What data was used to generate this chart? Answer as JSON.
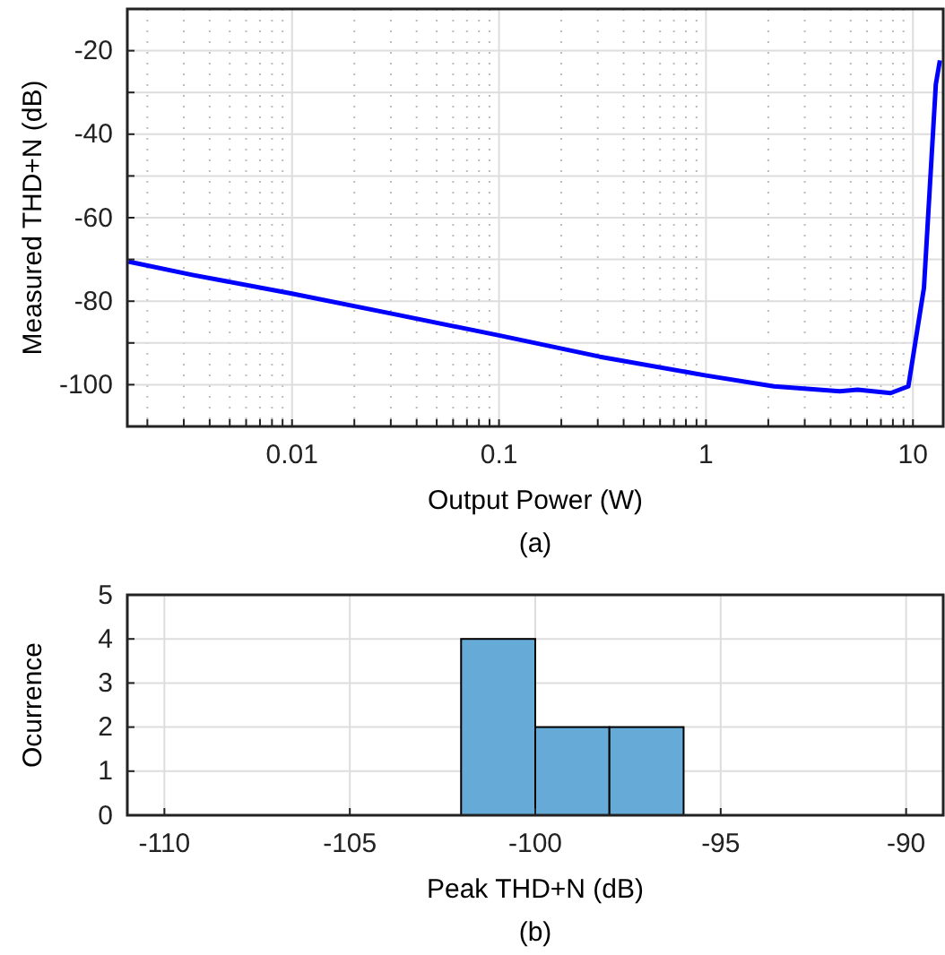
{
  "chart_data": [
    {
      "type": "line",
      "xlabel": "Output Power (W)",
      "ylabel": "Measured THD+N (dB)",
      "annotations": [
        "(a)"
      ],
      "log": "x",
      "grid": true,
      "xlim": [
        0.0016,
        14
      ],
      "ylim": [
        -110,
        -10
      ],
      "xticks": [
        {
          "value": 0.002,
          "label": null
        },
        {
          "value": 0.003,
          "label": null
        },
        {
          "value": 0.004,
          "label": null
        },
        {
          "value": 0.005,
          "label": null
        },
        {
          "value": 0.006,
          "label": null
        },
        {
          "value": 0.007,
          "label": null
        },
        {
          "value": 0.008,
          "label": null
        },
        {
          "value": 0.009,
          "label": null
        },
        0.01,
        {
          "value": 0.02,
          "label": null
        },
        {
          "value": 0.03,
          "label": null
        },
        {
          "value": 0.04,
          "label": null
        },
        {
          "value": 0.05,
          "label": null
        },
        {
          "value": 0.06,
          "label": null
        },
        {
          "value": 0.07,
          "label": null
        },
        {
          "value": 0.08,
          "label": null
        },
        {
          "value": 0.09,
          "label": null
        },
        0.1,
        {
          "value": 0.2,
          "label": null
        },
        {
          "value": 0.3,
          "label": null
        },
        {
          "value": 0.4,
          "label": null
        },
        {
          "value": 0.5,
          "label": null
        },
        {
          "value": 0.6,
          "label": null
        },
        {
          "value": 0.7,
          "label": null
        },
        {
          "value": 0.8,
          "label": null
        },
        {
          "value": 0.9,
          "label": null
        },
        1,
        {
          "value": 2,
          "label": null
        },
        {
          "value": 3,
          "label": null
        },
        {
          "value": 4,
          "label": null
        },
        {
          "value": 5,
          "label": null
        },
        {
          "value": 6,
          "label": null
        },
        {
          "value": 7,
          "label": null
        },
        {
          "value": 8,
          "label": null
        },
        {
          "value": 9,
          "label": null
        },
        10
      ],
      "yticks": [
        {
          "value": -110,
          "label": null
        },
        -100,
        {
          "value": -90,
          "label": null
        },
        -80,
        {
          "value": -70,
          "label": null
        },
        -60,
        {
          "value": -50,
          "label": null
        },
        -40,
        {
          "value": -30,
          "label": null
        },
        -20,
        {
          "value": -10,
          "label": null
        }
      ],
      "line_style": "solid",
      "marker": "none",
      "series": [
        {
          "color": "#0000ff",
          "x": [
            0.00162,
            0.0033,
            0.01,
            0.0319,
            0.1,
            0.307,
            1,
            2.13,
            4.43,
            5.4,
            7.8,
            9.5,
            11.3,
            12.9,
            13.5
          ],
          "values": [
            -70.5,
            -73.7,
            -78.2,
            -83.2,
            -88.2,
            -93.3,
            -97.8,
            -100.4,
            -101.6,
            -101.2,
            -102,
            -100.4,
            -76.8,
            -28,
            -22.3
          ]
        }
      ]
    },
    {
      "type": "histogram",
      "xlabel": "Peak THD+N (dB)",
      "ylabel": "Ocurrence",
      "annotations": [
        "(b)"
      ],
      "grid": true,
      "xlim": [
        -111,
        -89
      ],
      "ylim": [
        0,
        5
      ],
      "xticks": [
        -110,
        -105,
        -100,
        -95,
        -90
      ],
      "yticks": [
        0,
        1,
        2,
        3,
        4,
        5
      ],
      "bins": [
        -102,
        -100,
        -98,
        -96
      ],
      "values": [
        4,
        2,
        2
      ],
      "color": "#66aad7"
    }
  ]
}
